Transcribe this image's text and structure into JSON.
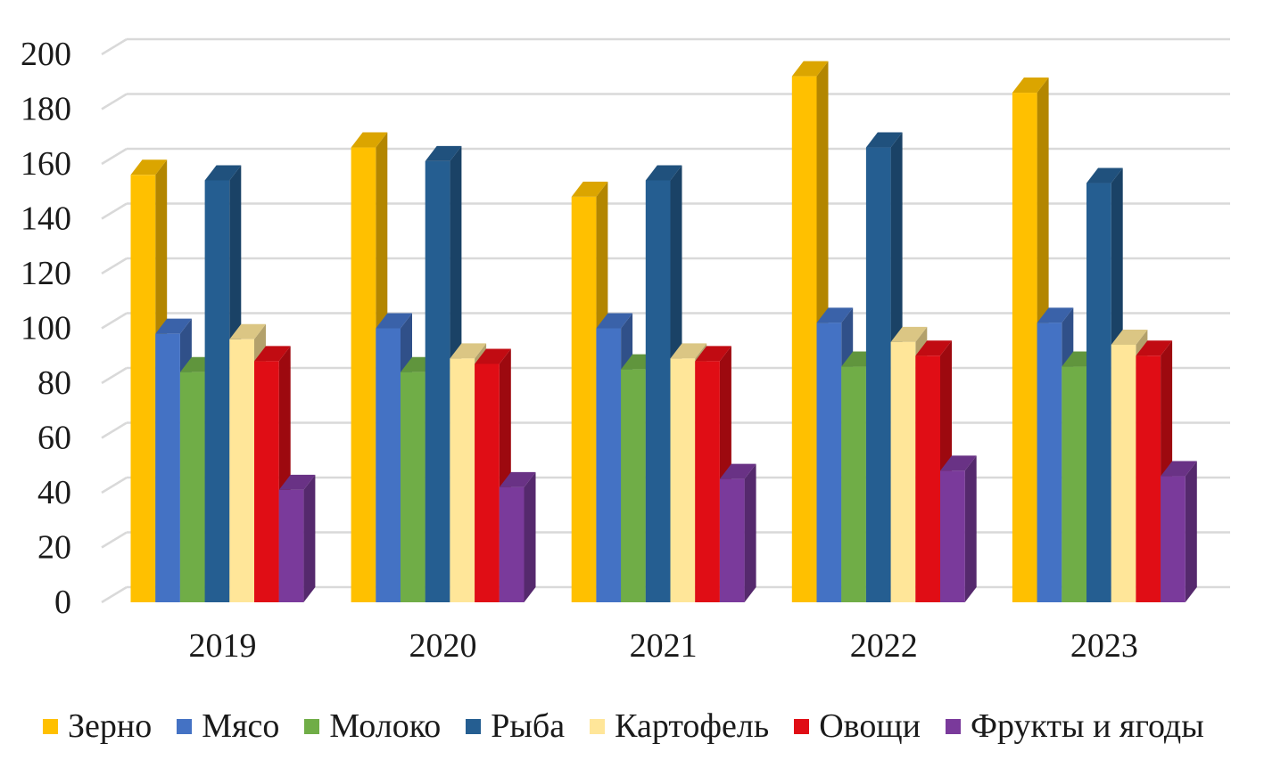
{
  "chart_data": {
    "type": "bar",
    "style": "3d-column",
    "title": "",
    "xlabel": "",
    "ylabel": "",
    "categories": [
      "2019",
      "2020",
      "2021",
      "2022",
      "2023"
    ],
    "series": [
      {
        "name": "Зерно",
        "color": "#FFC000",
        "values": [
          156,
          166,
          148,
          192,
          186
        ]
      },
      {
        "name": "Мясо",
        "color": "#4472C4",
        "values": [
          98,
          100,
          100,
          102,
          102
        ]
      },
      {
        "name": "Молоко",
        "color": "#70AD47",
        "values": [
          84,
          84,
          85,
          86,
          86
        ]
      },
      {
        "name": "Рыба",
        "color": "#255E91",
        "values": [
          154,
          161,
          154,
          166,
          153
        ]
      },
      {
        "name": "Картофель",
        "color": "#FFE699",
        "values": [
          96,
          89,
          89,
          95,
          94
        ]
      },
      {
        "name": "Овощи",
        "color": "#E00D15",
        "values": [
          88,
          87,
          88,
          90,
          90
        ]
      },
      {
        "name": "Фрукты и ягоды",
        "color": "#7A3A9B",
        "values": [
          41,
          42,
          45,
          48,
          46
        ]
      }
    ],
    "ylim": [
      0,
      200
    ],
    "ytick_step": 20,
    "yticks": [
      "0",
      "20",
      "40",
      "60",
      "80",
      "100",
      "120",
      "140",
      "160",
      "180",
      "200"
    ],
    "grid": true,
    "gridline_color": "#D9D9D9",
    "text_color": "#1A1A1A",
    "background_color": "#FFFFFF",
    "legend_position": "bottom"
  }
}
